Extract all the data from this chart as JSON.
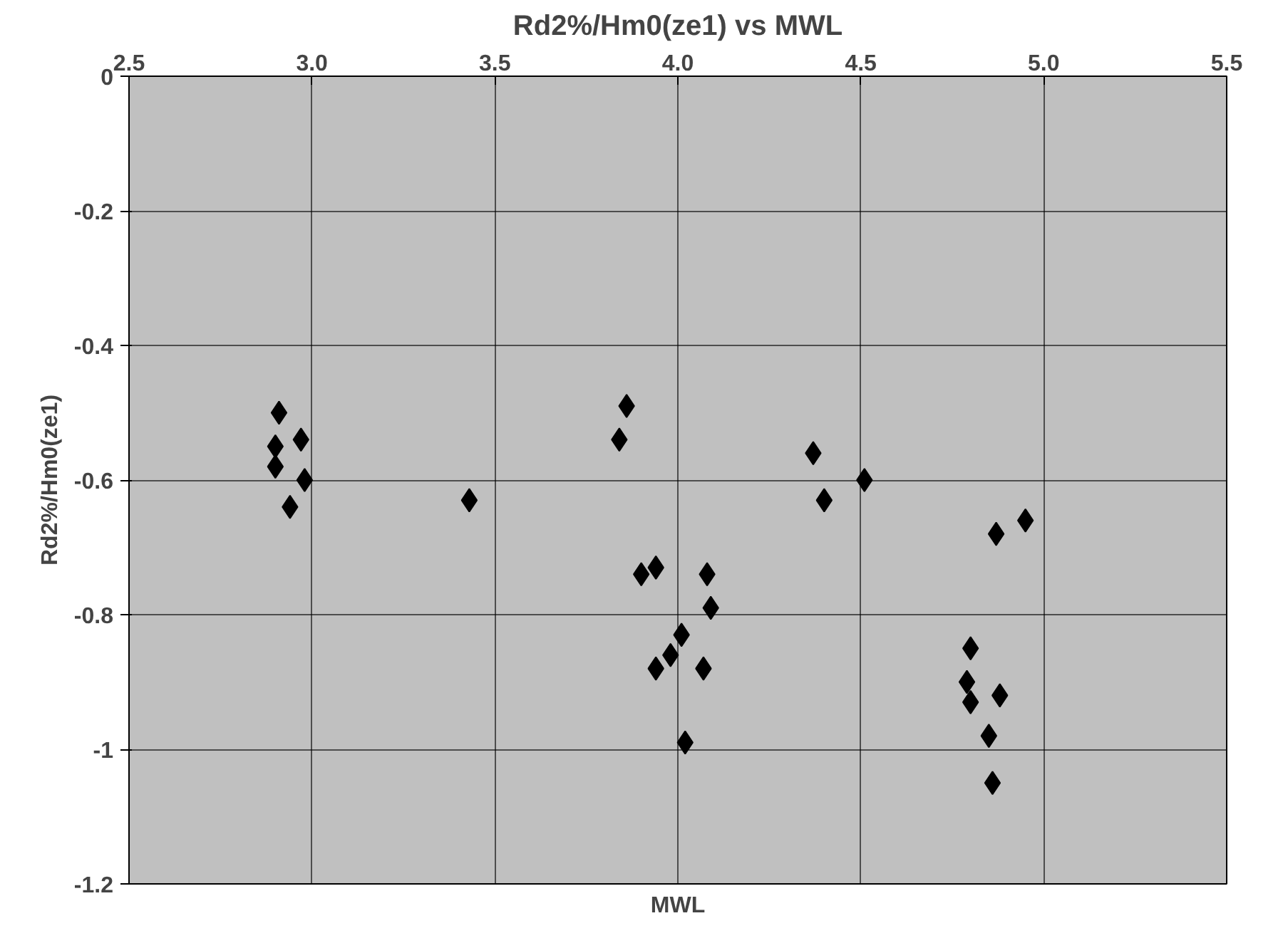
{
  "chart_data": {
    "type": "scatter",
    "title": "Rd2%/Hm0(ze1) vs MWL",
    "xlabel": "MWL",
    "ylabel": "Rd2%/Hm0(ze1)",
    "x": [
      2.91,
      2.9,
      2.97,
      2.9,
      2.98,
      2.94,
      3.43,
      3.86,
      3.84,
      3.9,
      3.94,
      4.08,
      4.09,
      4.01,
      3.98,
      3.94,
      4.07,
      4.02,
      4.37,
      4.4,
      4.51,
      4.87,
      4.95,
      4.8,
      4.79,
      4.8,
      4.88,
      4.85,
      4.86
    ],
    "series": [
      {
        "color": "#000000",
        "values": [
          -0.5,
          -0.55,
          -0.54,
          -0.58,
          -0.6,
          -0.64,
          -0.63,
          -0.49,
          -0.54,
          -0.74,
          -0.73,
          -0.74,
          -0.79,
          -0.83,
          -0.86,
          -0.88,
          -0.88,
          -0.99,
          -0.56,
          -0.63,
          -0.6,
          -0.68,
          -0.66,
          -0.85,
          -0.9,
          -0.93,
          -0.92,
          -0.98,
          -1.05
        ]
      }
    ],
    "xlim": [
      2.5,
      5.5
    ],
    "xticks": [
      {
        "value": 2.5,
        "label": "2.5"
      },
      {
        "value": 3.0,
        "label": "3.0"
      },
      {
        "value": 3.5,
        "label": "3.5"
      },
      {
        "value": 4.0,
        "label": "4.0"
      },
      {
        "value": 4.5,
        "label": "4.5"
      },
      {
        "value": 5.0,
        "label": "5.0"
      },
      {
        "value": 5.5,
        "label": "5.5"
      }
    ],
    "ylim": [
      -1.2,
      0
    ],
    "yticks": [
      -1.2,
      -1,
      -0.8,
      -0.6,
      -0.4,
      -0.2,
      0
    ],
    "grid": true,
    "marker": "diamond"
  }
}
